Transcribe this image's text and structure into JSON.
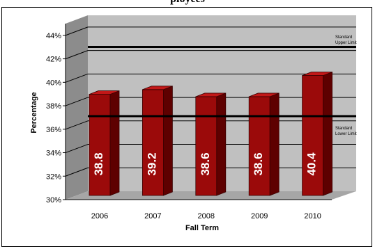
{
  "header": {
    "title_fragment": "ployees"
  },
  "chart_data": {
    "type": "bar",
    "title": "",
    "xlabel": "Fall Term",
    "ylabel": "Percentage",
    "categories": [
      "2006",
      "2007",
      "2008",
      "2009",
      "2010"
    ],
    "values": [
      38.8,
      39.2,
      38.6,
      38.6,
      40.4
    ],
    "data_labels": [
      "38.8",
      "39.2",
      "38.6",
      "38.6",
      "40.4"
    ],
    "yticks": [
      "30%",
      "32%",
      "34%",
      "36%",
      "38%",
      "40%",
      "42%",
      "44%"
    ],
    "ylim": [
      30,
      45
    ],
    "grid": true,
    "bar_color": "#9b0a0a",
    "wall_color": "#c0c0c0",
    "reference_lines": [
      {
        "value": 42.3,
        "label_line1": "Standard",
        "label_line2": "Upper Limit"
      },
      {
        "value": 36.4,
        "label_line1": "Standard",
        "label_line2": "Lower Limit"
      }
    ]
  }
}
